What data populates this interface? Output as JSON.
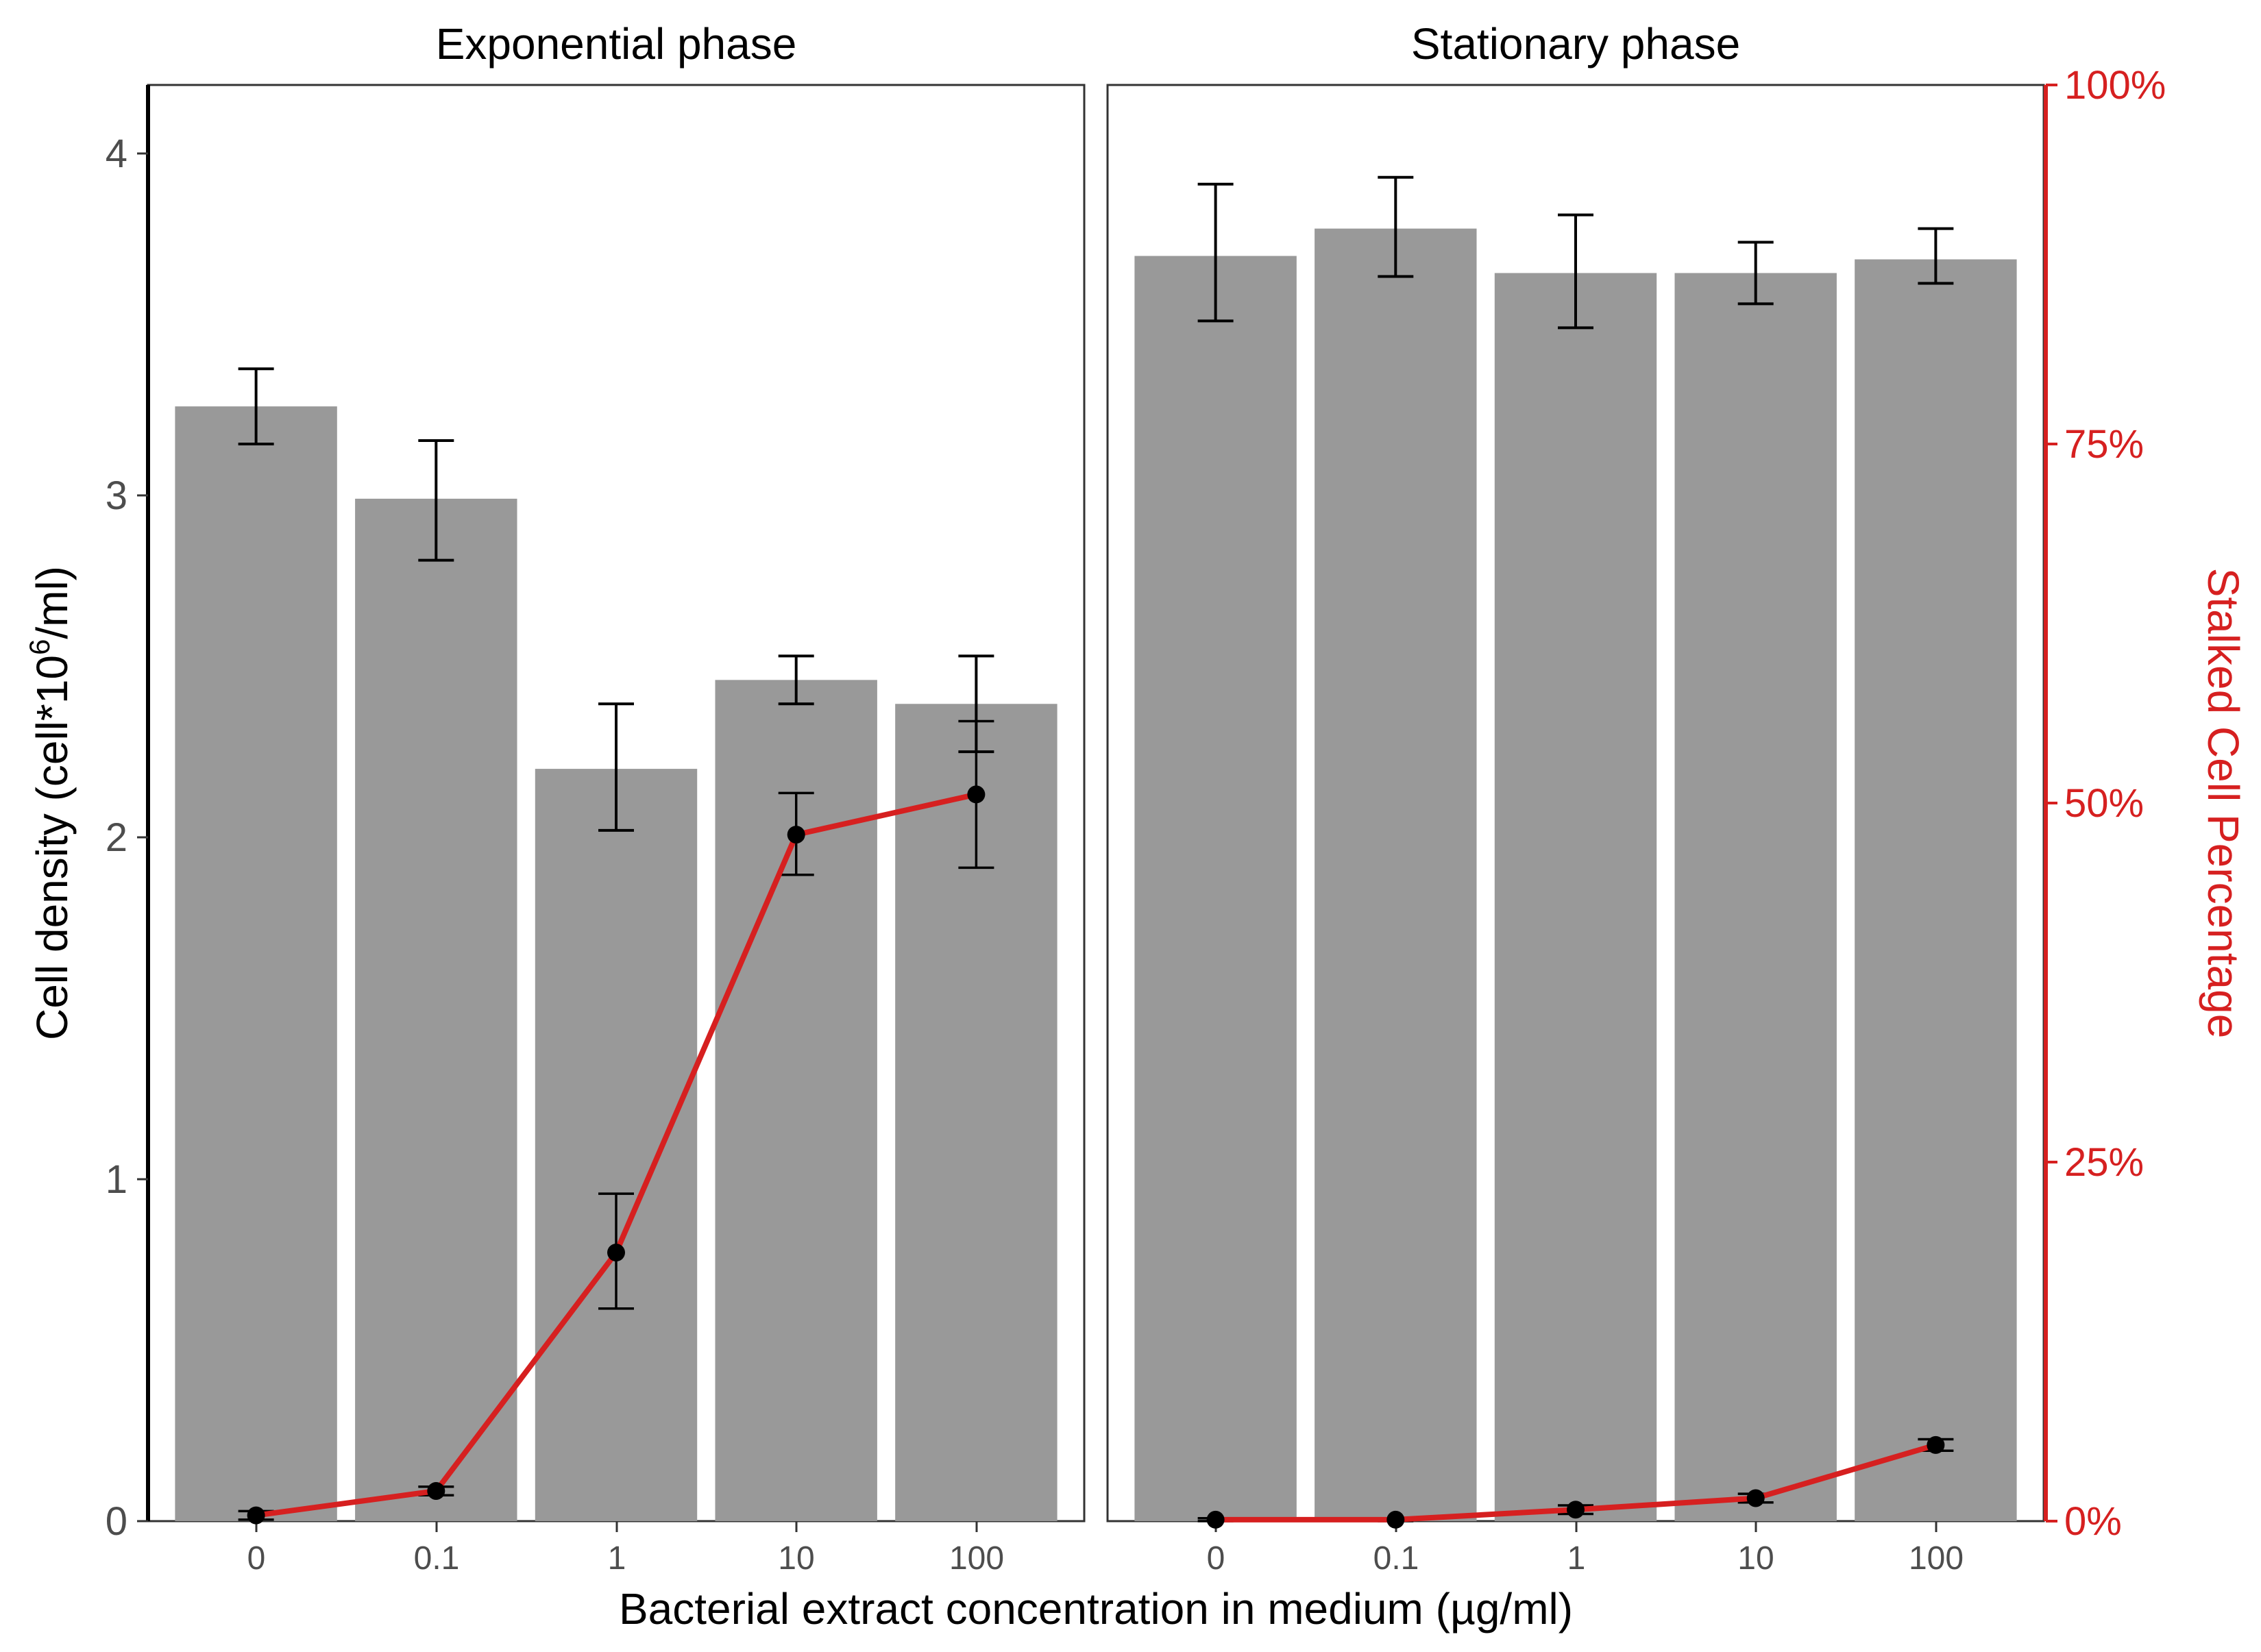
{
  "chart_data": {
    "type": "bar",
    "categories": [
      "0",
      "0.1",
      "1",
      "10",
      "100"
    ],
    "xlabel": "Bacterial extract concentration in medium (µg/ml)",
    "ylabel": {
      "before": "Cell density (cell*10",
      "sup": "6",
      "after": "/ml)"
    },
    "ylim": [
      0,
      4.2
    ],
    "yticks": [
      "0",
      "1",
      "2",
      "3",
      "4"
    ],
    "y2label": "Stalked Cell Percentage",
    "y2lim": [
      0,
      100
    ],
    "y2ticks": [
      "0%",
      "25%",
      "50%",
      "75%",
      "100%"
    ],
    "colors": {
      "bar": "#999999",
      "line": "#d62020",
      "point": "#000000",
      "errorbar": "#000000",
      "secondary_axis": "#d62020"
    },
    "panels": [
      {
        "title": "Exponential phase",
        "series": [
          {
            "name": "Cell density",
            "type": "bar",
            "values": [
              3.26,
              2.99,
              2.2,
              2.46,
              2.39
            ],
            "err_low": [
              3.15,
              2.81,
              2.02,
              2.39,
              2.25
            ],
            "err_high": [
              3.37,
              3.16,
              2.39,
              2.53,
              2.53
            ]
          },
          {
            "name": "Stalked Cell Percentage",
            "type": "line",
            "axis": "right",
            "values": [
              0.4,
              2.1,
              18.7,
              47.8,
              50.6
            ],
            "err_low": [
              0.1,
              1.8,
              14.8,
              45.0,
              45.5
            ],
            "err_high": [
              0.7,
              2.4,
              22.8,
              50.7,
              55.7
            ]
          }
        ]
      },
      {
        "title": "Stationary phase",
        "series": [
          {
            "name": "Cell density",
            "type": "bar",
            "values": [
              3.7,
              3.78,
              3.65,
              3.65,
              3.69
            ],
            "err_low": [
              3.51,
              3.64,
              3.49,
              3.56,
              3.62
            ],
            "err_high": [
              3.91,
              3.93,
              3.82,
              3.74,
              3.78
            ]
          },
          {
            "name": "Stalked Cell Percentage",
            "type": "line",
            "axis": "right",
            "values": [
              0.1,
              0.1,
              0.8,
              1.6,
              5.3
            ],
            "err_low": [
              0.0,
              0.0,
              0.5,
              1.3,
              4.9
            ],
            "err_high": [
              0.2,
              0.2,
              1.1,
              1.9,
              5.7
            ]
          }
        ]
      }
    ]
  }
}
